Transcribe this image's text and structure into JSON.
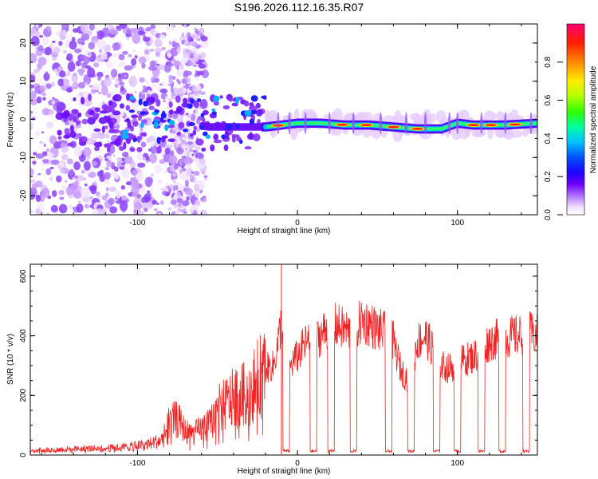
{
  "title": "S196.2026.112.16.35.R07",
  "chart_data": [
    {
      "type": "heatmap",
      "xlabel": "Height of straight line (km)",
      "ylabel": "Frequency (Hz)",
      "xlim": [
        -167,
        150
      ],
      "ylim": [
        -25,
        25
      ],
      "xticks": [
        -100,
        0,
        100
      ],
      "yticks": [
        -20,
        -10,
        0,
        10,
        20
      ],
      "colorbar": {
        "label": "Normalized spectral amplitude",
        "range": [
          0,
          1
        ],
        "ticks": [
          0.0,
          0.2,
          0.4,
          0.6,
          0.8
        ],
        "colors": [
          "#ffffff",
          "#e6ccff",
          "#a060ff",
          "#6000ff",
          "#0000ff",
          "#0060ff",
          "#00d0ff",
          "#00ff90",
          "#40ff00",
          "#c0ff00",
          "#ffe000",
          "#ff8000",
          "#ff2000",
          "#ff0080"
        ]
      },
      "ridge": [
        [
          -100,
          -2
        ],
        [
          -75,
          -1
        ],
        [
          -55,
          -2
        ],
        [
          -20,
          -2
        ],
        [
          0,
          -1
        ],
        [
          15,
          -1
        ],
        [
          30,
          -1.5
        ],
        [
          45,
          -1.5
        ],
        [
          60,
          -2
        ],
        [
          75,
          -2.5
        ],
        [
          90,
          -2.5
        ],
        [
          100,
          -1
        ],
        [
          110,
          -1.5
        ],
        [
          130,
          -1.5
        ],
        [
          150,
          -1
        ]
      ]
    },
    {
      "type": "line",
      "xlabel": "Height of straight line (km)",
      "ylabel": "SNR (10 * v/v)",
      "xlim": [
        -167,
        150
      ],
      "ylim": [
        0,
        640
      ],
      "xticks": [
        -100,
        0,
        100
      ],
      "yticks": [
        0,
        200,
        400,
        600
      ],
      "color": "#ee2222",
      "series": [
        {
          "name": "SNR",
          "x": [
            -167,
            -150,
            -130,
            -110,
            -95,
            -85,
            -80,
            -75,
            -70,
            -65,
            -60,
            -55,
            -50,
            -45,
            -40,
            -35,
            -30,
            -25,
            -20,
            -15,
            -12,
            -10,
            -8,
            -6,
            -4,
            -2,
            0,
            3,
            6,
            10,
            14,
            18,
            22,
            26,
            30,
            35,
            40,
            45,
            50,
            55,
            60,
            65,
            70,
            75,
            80,
            85,
            90,
            95,
            100,
            105,
            110,
            115,
            120,
            125,
            130,
            135,
            140,
            145,
            150
          ],
          "y": [
            15,
            18,
            22,
            25,
            35,
            50,
            110,
            120,
            80,
            70,
            90,
            100,
            150,
            170,
            190,
            200,
            210,
            250,
            290,
            300,
            380,
            450,
            360,
            250,
            300,
            320,
            330,
            360,
            380,
            370,
            400,
            420,
            440,
            430,
            420,
            410,
            450,
            440,
            420,
            410,
            380,
            280,
            250,
            380,
            400,
            350,
            300,
            290,
            310,
            320,
            330,
            350,
            380,
            390,
            390,
            400,
            400,
            410,
            400
          ]
        },
        {
          "name": "drops",
          "drops": [
            [
              -9,
              -5
            ],
            [
              8,
              12
            ],
            [
              19,
              23
            ],
            [
              33,
              37
            ],
            [
              55,
              59
            ],
            [
              69,
              73
            ],
            [
              85,
              89
            ],
            [
              98,
              102
            ],
            [
              113,
              117
            ],
            [
              126,
              130
            ],
            [
              141,
              145
            ]
          ]
        }
      ]
    }
  ]
}
